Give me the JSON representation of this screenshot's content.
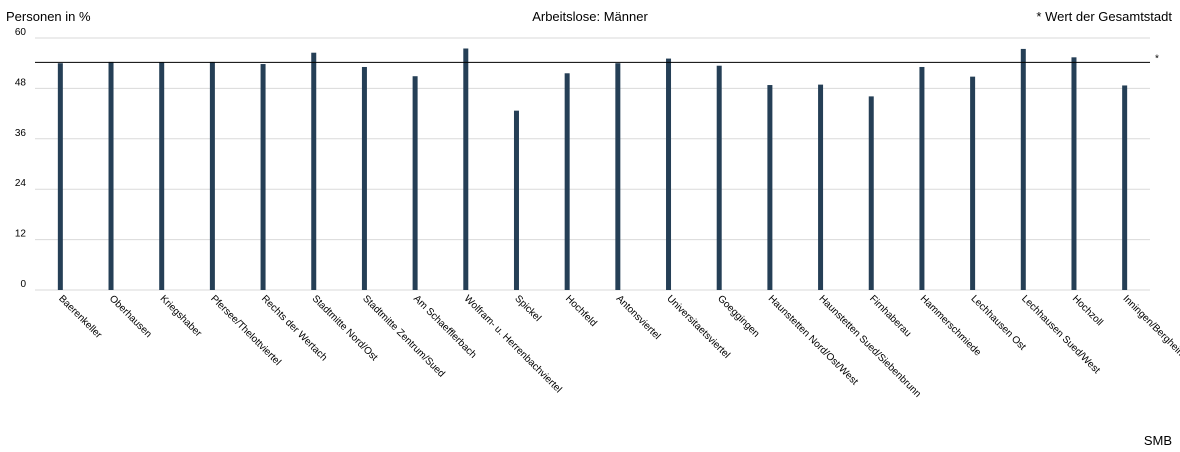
{
  "header": {
    "ylabel": "Personen in %",
    "title": "Arbeitslose: Männer",
    "note": "* Wert der Gesamtstadt"
  },
  "footer": {
    "credit": "SMB"
  },
  "chart_data": {
    "type": "bar",
    "title": "Arbeitslose: Männer",
    "ylabel": "Personen in %",
    "xlabel": "",
    "ylim": [
      0,
      60
    ],
    "yticks": [
      0,
      12,
      24,
      36,
      48,
      60
    ],
    "grid": true,
    "bar_color": "#253f56",
    "reference": {
      "label": "*",
      "value": 54.2
    },
    "categories": [
      "Baerenkeller",
      "Oberhausen",
      "Kriegshaber",
      "Pfersee/Thelottviertel",
      "Rechts der Wertach",
      "Stadtmitte Nord/Ost",
      "Stadtmitte Zentrum/Sued",
      "Am Schaefflerbach",
      "Wolfram- u. Herrenbachviertel",
      "Spickel",
      "Hochfeld",
      "Antonsviertel",
      "Universitaetsviertel",
      "Goeggingen",
      "Haunstetten Nord/Ost/West",
      "Haunstetten Sued/Siebenbrunn",
      "Firnhaberau",
      "Hammerschmiede",
      "Lechhausen Ost",
      "Lechhausen Sued/West",
      "Hochzoll",
      "Inningen/Bergheim"
    ],
    "values": [
      54.0,
      54.3,
      54.2,
      54.3,
      53.8,
      56.5,
      53.1,
      50.9,
      57.5,
      42.7,
      51.6,
      54.0,
      55.1,
      53.4,
      48.8,
      48.9,
      46.1,
      53.1,
      50.8,
      57.4,
      55.4,
      48.7
    ]
  }
}
